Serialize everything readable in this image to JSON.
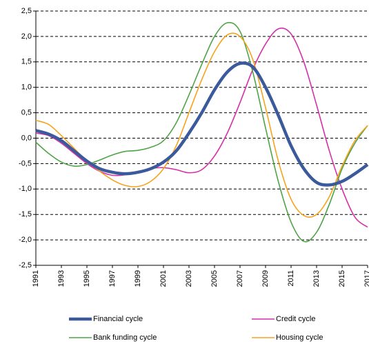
{
  "chart_data": {
    "type": "line",
    "x": [
      1991,
      1992,
      1993,
      1994,
      1995,
      1996,
      1997,
      1998,
      1999,
      2000,
      2001,
      2002,
      2003,
      2004,
      2005,
      2006,
      2007,
      2008,
      2009,
      2010,
      2011,
      2012,
      2013,
      2014,
      2015,
      2016,
      2017
    ],
    "xlim": [
      1991,
      2017
    ],
    "xticks": [
      1991,
      1993,
      1995,
      1997,
      1999,
      2001,
      2003,
      2005,
      2007,
      2009,
      2011,
      2013,
      2015,
      2017
    ],
    "ylim": [
      -2.5,
      2.5
    ],
    "yticks": [
      {
        "value": -2.5,
        "label": "-2,5"
      },
      {
        "value": -2,
        "label": "-2,0"
      },
      {
        "value": -1.5,
        "label": "-1,5"
      },
      {
        "value": -1,
        "label": "-1,0"
      },
      {
        "value": -0.5,
        "label": "-0,5"
      },
      {
        "value": 0,
        "label": "0,0"
      },
      {
        "value": 0.5,
        "label": "0,5"
      },
      {
        "value": 1,
        "label": "1,0"
      },
      {
        "value": 1.5,
        "label": "1,5"
      },
      {
        "value": 2,
        "label": "2,0"
      },
      {
        "value": 2.5,
        "label": "2,5"
      }
    ],
    "grid": true,
    "series": [
      {
        "name": "Financial cycle",
        "color": "#3a5a9c",
        "width": 4.5,
        "values": [
          0.15,
          0.08,
          -0.05,
          -0.25,
          -0.45,
          -0.6,
          -0.67,
          -0.7,
          -0.67,
          -0.6,
          -0.47,
          -0.25,
          0.1,
          0.5,
          0.95,
          1.3,
          1.47,
          1.4,
          1.0,
          0.45,
          -0.15,
          -0.6,
          -0.87,
          -0.92,
          -0.85,
          -0.7,
          -0.52
        ]
      },
      {
        "name": "Credit cycle",
        "color": "#d62fa8",
        "width": 1.6,
        "values": [
          0.1,
          0.05,
          -0.1,
          -0.3,
          -0.5,
          -0.65,
          -0.73,
          -0.72,
          -0.67,
          -0.6,
          -0.58,
          -0.62,
          -0.68,
          -0.62,
          -0.35,
          0.1,
          0.7,
          1.35,
          1.85,
          2.15,
          2.05,
          1.5,
          0.65,
          -0.25,
          -1.0,
          -1.55,
          -1.75
        ]
      },
      {
        "name": "Bank funding cycle",
        "color": "#4ea447",
        "width": 1.6,
        "values": [
          -0.08,
          -0.3,
          -0.47,
          -0.55,
          -0.52,
          -0.43,
          -0.33,
          -0.26,
          -0.24,
          -0.18,
          -0.05,
          0.3,
          0.85,
          1.45,
          2.0,
          2.27,
          2.1,
          1.3,
          0.2,
          -0.85,
          -1.65,
          -2.03,
          -1.85,
          -1.3,
          -0.6,
          -0.1,
          0.25
        ]
      },
      {
        "name": "Housing cycle",
        "color": "#f7a21b",
        "width": 1.6,
        "values": [
          0.35,
          0.27,
          0.05,
          -0.2,
          -0.45,
          -0.65,
          -0.82,
          -0.93,
          -0.95,
          -0.85,
          -0.6,
          -0.15,
          0.5,
          1.15,
          1.7,
          2.03,
          2.0,
          1.55,
          0.6,
          -0.45,
          -1.2,
          -1.52,
          -1.5,
          -1.15,
          -0.55,
          -0.05,
          0.25
        ]
      }
    ]
  }
}
